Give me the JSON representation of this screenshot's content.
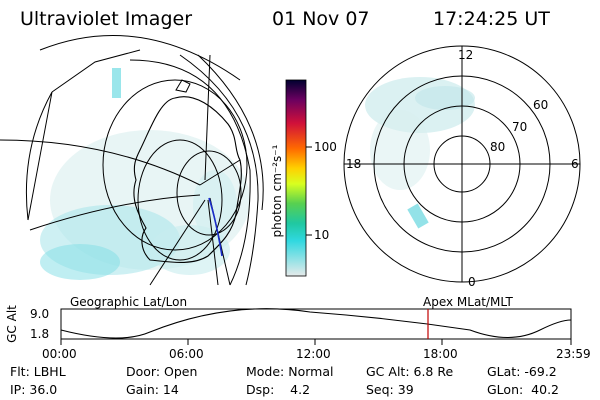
{
  "header": {
    "instrument": "Ultraviolet Imager",
    "date": "01 Nov 07",
    "time": "17:24:25 UT"
  },
  "colorbar": {
    "unit_label": "photon cm⁻²s⁻¹",
    "ticks": [
      "100",
      "10"
    ],
    "scale": "log",
    "colors": [
      "#000040",
      "#8b0060",
      "#d00020",
      "#ff6000",
      "#ffd000",
      "#ccff00",
      "#40d060",
      "#30d0d0",
      "#e0e0e0"
    ]
  },
  "polar_plot": {
    "mlt_labels": {
      "top": "12",
      "left": "18",
      "right": "6",
      "bottom": "0"
    },
    "lat_labels": [
      "60",
      "70",
      "80"
    ]
  },
  "timeline": {
    "ylabel": "GC Alt",
    "yticks": [
      "9.0",
      "1.8"
    ],
    "left_caption": "Geographic Lat/Lon",
    "right_caption": "Apex MLat/MLT",
    "xticks": [
      "00:00",
      "06:00",
      "12:00",
      "18:00",
      "23:59"
    ],
    "current_time_marker": "17:24:25"
  },
  "info": {
    "filter": "Flt: LBHL",
    "door": "Door: Open",
    "mode": "Mode: Normal",
    "gc_alt": "GC Alt: 6.8 Re",
    "glat": "GLat: -69.2",
    "ip": "IP: 36.0",
    "gain": "Gain: 14",
    "dsp": "Dsp:    4.2",
    "seq": "Seq: 39",
    "glon": "GLon:  40.2"
  },
  "palette": {
    "emission": "#bfe8ea",
    "emission_bright": "#5fdde4",
    "grid": "#000000",
    "track": "#1a2cc9",
    "marker": "#c00000"
  }
}
